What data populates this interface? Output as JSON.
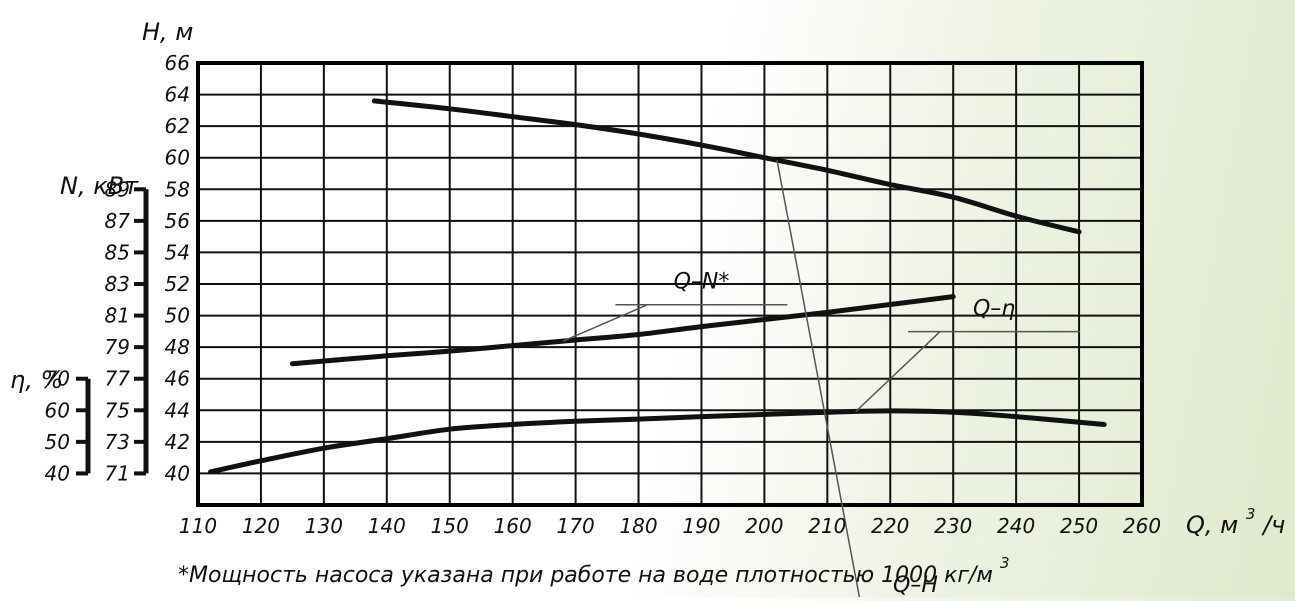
{
  "chart_data": {
    "type": "line",
    "title": "",
    "footnote": "*Мощность насоса указана при работе на воде плотностью 1000 кг/м",
    "footnote_sup": "3",
    "x_axis": {
      "label": "Q, м",
      "label_sup": "3",
      "label_suffix": "/ч",
      "range": [
        110,
        260
      ],
      "ticks": [
        "110",
        "120",
        "130",
        "140",
        "150",
        "160",
        "170",
        "180",
        "190",
        "200",
        "210",
        "220",
        "230",
        "240",
        "250",
        "260"
      ]
    },
    "y_axes": [
      {
        "id": "H",
        "label": "Н, м",
        "range": [
          38,
          66
        ],
        "ticks": [
          "40",
          "42",
          "44",
          "46",
          "48",
          "50",
          "52",
          "54",
          "56",
          "58",
          "60",
          "62",
          "64",
          "66"
        ]
      },
      {
        "id": "N",
        "label": "N, кВт",
        "range": [
          71,
          89
        ],
        "ticks": [
          "71",
          "73",
          "75",
          "77",
          "79",
          "81",
          "83",
          "85",
          "87",
          "89"
        ]
      },
      {
        "id": "eta",
        "label": "η, %",
        "range": [
          40,
          70
        ],
        "ticks": [
          "40",
          "50",
          "60",
          "70"
        ]
      }
    ],
    "grid": true,
    "series": [
      {
        "name": "Q–H",
        "axis": "H",
        "label_anchor": [
          224,
          63.5
        ],
        "x": [
          138,
          150,
          160,
          170,
          180,
          190,
          200,
          210,
          220,
          230,
          240,
          250
        ],
        "y": [
          63.6,
          63.1,
          62.6,
          62.1,
          61.5,
          60.8,
          60.0,
          59.2,
          58.3,
          57.5,
          56.3,
          55.3
        ]
      },
      {
        "name": "Q–N*",
        "axis": "N",
        "label_anchor": [
          190,
          82.7
        ],
        "x": [
          125,
          140,
          150,
          160,
          170,
          180,
          190,
          200,
          210,
          220,
          230
        ],
        "y": [
          77.95,
          78.45,
          78.75,
          79.1,
          79.45,
          79.8,
          80.3,
          80.75,
          81.2,
          81.7,
          82.2
        ]
      },
      {
        "name": "Q–η",
        "axis": "eta",
        "label_anchor": [
          236.5,
          81
        ],
        "x": [
          112,
          120,
          130,
          140,
          150,
          160,
          170,
          180,
          190,
          200,
          210,
          220,
          230,
          240,
          254
        ],
        "y": [
          40.5,
          44.0,
          48.0,
          51.0,
          54.0,
          55.5,
          56.5,
          57.2,
          58.0,
          58.7,
          59.4,
          59.8,
          59.4,
          58.0,
          55.5
        ]
      }
    ]
  }
}
